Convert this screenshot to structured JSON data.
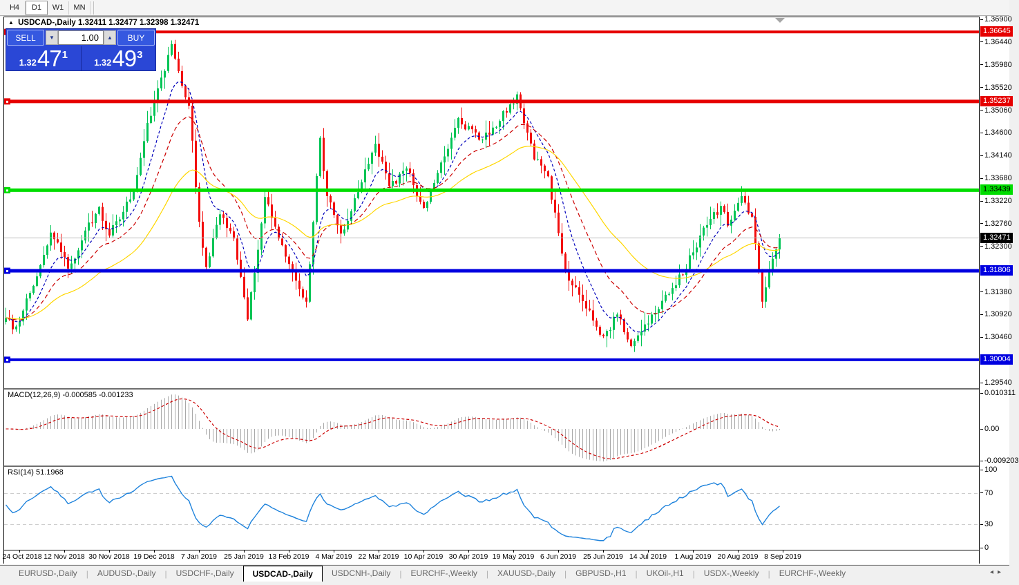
{
  "toolbar": {
    "timeframes": [
      {
        "label": "H4",
        "active": false
      },
      {
        "label": "D1",
        "active": true
      },
      {
        "label": "W1",
        "active": false
      },
      {
        "label": "MN",
        "active": false
      }
    ]
  },
  "chart": {
    "collapse_icon": "▲",
    "symbol": "USDCAD-,Daily",
    "ohlc_text": "1.32411 1.32477 1.32398 1.32471"
  },
  "order_panel": {
    "sell_label": "SELL",
    "buy_label": "BUY",
    "volume": "1.00",
    "spin_down_icon": "▼",
    "spin_up_icon": "▲",
    "sell_price_small": "1.32",
    "sell_price_big": "47",
    "sell_price_sup": "1",
    "buy_price_small": "1.32",
    "buy_price_big": "49",
    "buy_price_sup": "3"
  },
  "indicators": {
    "macd_label": "MACD(12,26,9) -0.000585 -0.001233",
    "rsi_label": "RSI(14) 51.1968"
  },
  "price_axis": {
    "ticks": [
      "1.36900",
      "1.36440",
      "1.35980",
      "1.35520",
      "1.35060",
      "1.34600",
      "1.34140",
      "1.33680",
      "1.33220",
      "1.32760",
      "1.32300",
      "1.31380",
      "1.30920",
      "1.30460",
      "1.29540"
    ],
    "badges": [
      {
        "label": "1.36645",
        "bg": "#e60000",
        "fg": "#ffffff"
      },
      {
        "label": "1.35237",
        "bg": "#e60000",
        "fg": "#ffffff"
      },
      {
        "label": "1.33439",
        "bg": "#00dd00",
        "fg": "#000000"
      },
      {
        "label": "1.32471",
        "bg": "#000000",
        "fg": "#ffffff"
      },
      {
        "label": "1.31806",
        "bg": "#0000e0",
        "fg": "#ffffff"
      },
      {
        "label": "1.30004",
        "bg": "#0000e0",
        "fg": "#ffffff"
      }
    ]
  },
  "macd_axis": [
    {
      "label": "0.010311",
      "value": 0.010311
    },
    {
      "label": "0.00",
      "value": 0.0
    },
    {
      "label": "-0.009203",
      "value": -0.009203
    }
  ],
  "rsi_axis": [
    {
      "label": "100",
      "value": 100
    },
    {
      "label": "70",
      "value": 70
    },
    {
      "label": "30",
      "value": 30
    },
    {
      "label": "0",
      "value": 0
    }
  ],
  "dates": [
    "24 Oct 2018",
    "12 Nov 2018",
    "30 Nov 2018",
    "19 Dec 2018",
    "7 Jan 2019",
    "25 Jan 2019",
    "13 Feb 2019",
    "4 Mar 2019",
    "22 Mar 2019",
    "10 Apr 2019",
    "30 Apr 2019",
    "19 May 2019",
    "6 Jun 2019",
    "25 Jun 2019",
    "14 Jul 2019",
    "1 Aug 2019",
    "20 Aug 2019",
    "8 Sep 2019"
  ],
  "tabs": {
    "items": [
      {
        "label": "EURUSD-,Daily",
        "active": false
      },
      {
        "label": "AUDUSD-,Daily",
        "active": false
      },
      {
        "label": "USDCHF-,Daily",
        "active": false
      },
      {
        "label": "USDCAD-,Daily",
        "active": true
      },
      {
        "label": "USDCNH-,Daily",
        "active": false
      },
      {
        "label": "EURCHF-,Weekly",
        "active": false
      },
      {
        "label": "XAUUSD-,Daily",
        "active": false
      },
      {
        "label": "GBPUSD-,H1",
        "active": false
      },
      {
        "label": "UKOil-,H1",
        "active": false
      },
      {
        "label": "USDX-,Weekly",
        "active": false
      },
      {
        "label": "EURCHF-,Weekly",
        "active": false
      }
    ],
    "scroll_left_icon": "◂",
    "scroll_right_icon": "▸"
  },
  "chart_data": {
    "type": "candlestick",
    "symbol": "USDCAD",
    "timeframe": "Daily",
    "open": 1.32411,
    "high": 1.32477,
    "low": 1.32398,
    "close": 1.32471,
    "bid": 1.32471,
    "ask": 1.32493,
    "bars": 225,
    "price_range": {
      "top": 1.369,
      "bottom": 1.2954
    },
    "waypoints": [
      [
        0,
        1.3085
      ],
      [
        2,
        1.3062
      ],
      [
        5,
        1.31
      ],
      [
        8,
        1.315
      ],
      [
        13,
        1.3258
      ],
      [
        18,
        1.3185
      ],
      [
        22,
        1.3242
      ],
      [
        27,
        1.331
      ],
      [
        30,
        1.3252
      ],
      [
        34,
        1.33
      ],
      [
        37,
        1.3342
      ],
      [
        41,
        1.348
      ],
      [
        45,
        1.3572
      ],
      [
        48,
        1.364
      ],
      [
        50,
        1.3585
      ],
      [
        53,
        1.3515
      ],
      [
        56,
        1.328
      ],
      [
        58,
        1.3188
      ],
      [
        62,
        1.3295
      ],
      [
        66,
        1.3246
      ],
      [
        70,
        1.3082
      ],
      [
        75,
        1.333
      ],
      [
        79,
        1.3246
      ],
      [
        83,
        1.318
      ],
      [
        87,
        1.3118
      ],
      [
        91,
        1.345
      ],
      [
        93,
        1.3332
      ],
      [
        97,
        1.3256
      ],
      [
        102,
        1.334
      ],
      [
        107,
        1.3438
      ],
      [
        111,
        1.3352
      ],
      [
        116,
        1.3388
      ],
      [
        121,
        1.3308
      ],
      [
        126,
        1.34
      ],
      [
        131,
        1.349
      ],
      [
        137,
        1.3446
      ],
      [
        143,
        1.3484
      ],
      [
        148,
        1.3538
      ],
      [
        153,
        1.3406
      ],
      [
        157,
        1.3372
      ],
      [
        162,
        1.318
      ],
      [
        166,
        1.3132
      ],
      [
        173,
        1.3048
      ],
      [
        177,
        1.3092
      ],
      [
        181,
        1.3028
      ],
      [
        185,
        1.3072
      ],
      [
        191,
        1.3132
      ],
      [
        196,
        1.3172
      ],
      [
        201,
        1.3252
      ],
      [
        207,
        1.3312
      ],
      [
        209,
        1.3272
      ],
      [
        213,
        1.3332
      ],
      [
        216,
        1.329
      ],
      [
        219,
        1.3118
      ],
      [
        222,
        1.3205
      ],
      [
        224,
        1.32471
      ]
    ],
    "levels": [
      {
        "price": 1.36645,
        "color": "#e60000",
        "width": 4,
        "marker": true
      },
      {
        "price": 1.35237,
        "color": "#e60000",
        "width": 5,
        "marker": true
      },
      {
        "price": 1.33439,
        "color": "#00dd00",
        "width": 5,
        "marker": true
      },
      {
        "price": 1.32471,
        "color": "#bdbdbd",
        "width": 1,
        "marker": false
      },
      {
        "price": 1.31806,
        "color": "#0000e0",
        "width": 5,
        "marker": true
      },
      {
        "price": 1.30004,
        "color": "#0000e0",
        "width": 4,
        "marker": true
      }
    ],
    "moving_averages": [
      {
        "period": 9,
        "color": "#0000bb",
        "dash": [
          4,
          3
        ]
      },
      {
        "period": 20,
        "color": "#cc0000",
        "dash": [
          6,
          4
        ]
      },
      {
        "period": 45,
        "color": "#ffd700",
        "dash": null
      }
    ],
    "macd": {
      "fast": 12,
      "slow": 26,
      "signal": 9,
      "main_current": -0.000585,
      "signal_current": -0.001233,
      "scale_max": 0.010311,
      "scale_min": -0.009203,
      "hist_color": "#a8a8a8",
      "signal_color": "#cc0000"
    },
    "rsi": {
      "period": 14,
      "current": 51.1968,
      "levels": [
        70,
        30
      ],
      "color": "#1f83dc",
      "level_color": "#c8c8c8"
    },
    "colors": {
      "up": "#00c455",
      "down": "#f20d0d"
    }
  }
}
